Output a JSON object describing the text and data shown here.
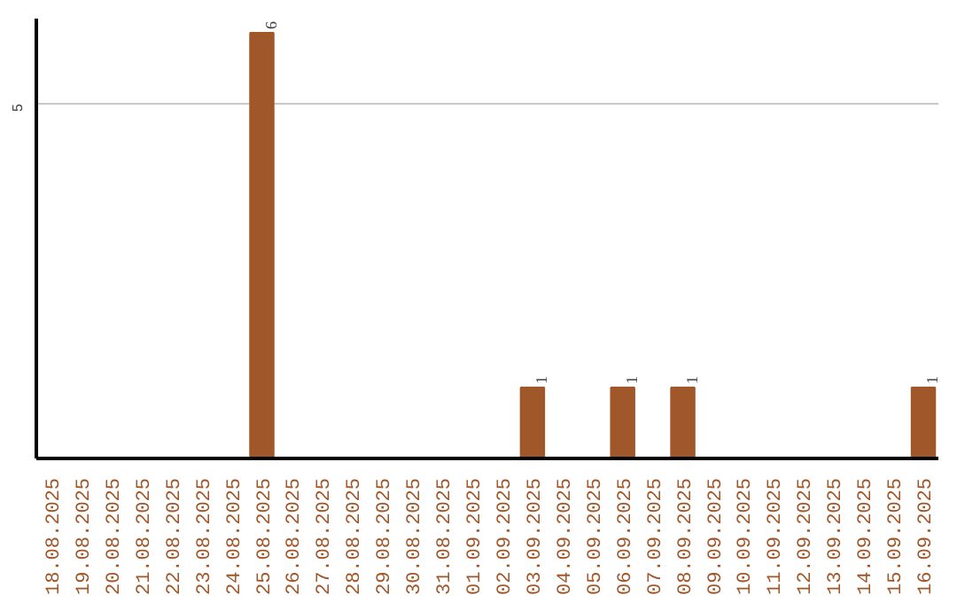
{
  "chart_data": {
    "type": "bar",
    "categories": [
      "18.08.2025",
      "19.08.2025",
      "20.08.2025",
      "21.08.2025",
      "22.08.2025",
      "23.08.2025",
      "24.08.2025",
      "25.08.2025",
      "26.08.2025",
      "27.08.2025",
      "28.08.2025",
      "29.08.2025",
      "30.08.2025",
      "31.08.2025",
      "01.09.2025",
      "02.09.2025",
      "03.09.2025",
      "04.09.2025",
      "05.09.2025",
      "06.09.2025",
      "07.09.2025",
      "08.09.2025",
      "09.09.2025",
      "10.09.2025",
      "11.09.2025",
      "12.09.2025",
      "13.09.2025",
      "14.09.2025",
      "15.09.2025",
      "16.09.2025"
    ],
    "values": [
      0,
      0,
      0,
      0,
      0,
      0,
      0,
      6,
      0,
      0,
      0,
      0,
      0,
      0,
      0,
      0,
      1,
      0,
      0,
      1,
      0,
      1,
      0,
      0,
      0,
      0,
      0,
      0,
      0,
      1
    ],
    "value_labels": [
      null,
      null,
      null,
      null,
      null,
      null,
      null,
      "6",
      null,
      null,
      null,
      null,
      null,
      null,
      null,
      null,
      "1",
      null,
      null,
      "1",
      null,
      "1",
      null,
      null,
      null,
      null,
      null,
      null,
      null,
      "1"
    ],
    "color": "#a0572a",
    "ylim": [
      0,
      6.2
    ],
    "yticks": [
      5
    ],
    "grid": "y"
  }
}
